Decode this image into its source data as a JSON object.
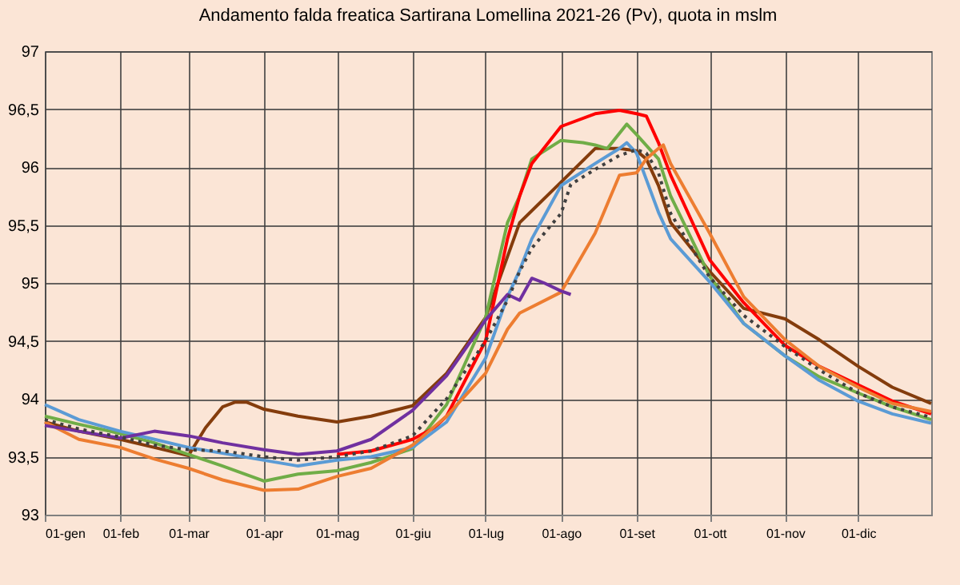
{
  "chart_data": {
    "type": "line",
    "title": "Andamento  falda freatica Sartirana Lomellina 2021-26 (Pv), quota in mslm",
    "xlim": [
      "--01-01",
      "--12-31"
    ],
    "xticks": [
      {
        "value": "--01-01",
        "label": "01-gen"
      },
      {
        "value": "--02-01",
        "label": "01-feb"
      },
      {
        "value": "--03-01",
        "label": "01-mar"
      },
      {
        "value": "--04-01",
        "label": "01-apr"
      },
      {
        "value": "--05-01",
        "label": "01-mag"
      },
      {
        "value": "--06-01",
        "label": "01-giu"
      },
      {
        "value": "--07-01",
        "label": "01-lug"
      },
      {
        "value": "--08-01",
        "label": "01-ago"
      },
      {
        "value": "--09-01",
        "label": "01-set"
      },
      {
        "value": "--10-01",
        "label": "01-ott"
      },
      {
        "value": "--11-01",
        "label": "01-nov"
      },
      {
        "value": "--12-01",
        "label": "01-dic"
      }
    ],
    "ylim": [
      93,
      97
    ],
    "yticks": [
      93,
      {
        "value": 93.5,
        "label": "93,5"
      },
      94,
      {
        "value": 94.5,
        "label": "94,5"
      },
      95,
      {
        "value": 95.5,
        "label": "95,5"
      },
      96,
      {
        "value": 96.5,
        "label": "96,5"
      },
      97
    ],
    "grid": true,
    "series": [
      {
        "color": "#843c0c",
        "x": [
          "--01-01",
          "--01-15",
          "--02-01",
          "--02-15",
          "--03-01",
          "--03-08",
          "--03-15",
          "--03-20",
          "--03-25",
          "--04-01",
          "--04-15",
          "--05-01",
          "--05-15",
          "--06-01",
          "--06-15",
          "--07-01",
          "--07-15",
          "--08-01",
          "--08-15",
          "--08-25",
          "--09-01",
          "--09-05",
          "--09-10",
          "--09-15",
          "--10-01",
          "--10-15",
          "--11-01",
          "--11-15",
          "--12-01",
          "--12-15",
          "--12-31"
        ],
        "values": [
          93.8,
          93.72,
          93.65,
          93.58,
          93.51,
          93.75,
          93.93,
          93.97,
          93.97,
          93.91,
          93.85,
          93.8,
          93.85,
          93.94,
          94.22,
          94.7,
          95.52,
          95.87,
          96.16,
          96.16,
          96.14,
          96.07,
          95.84,
          95.52,
          95.1,
          94.78,
          94.69,
          94.51,
          94.28,
          94.1,
          93.96
        ]
      },
      {
        "color": "#70ad47",
        "x": [
          "--01-01",
          "--01-15",
          "--02-01",
          "--02-15",
          "--03-01",
          "--03-15",
          "--04-01",
          "--04-15",
          "--05-01",
          "--05-15",
          "--06-01",
          "--06-15",
          "--07-01",
          "--07-10",
          "--07-15",
          "--07-20",
          "--08-01",
          "--08-10",
          "--08-15",
          "--08-20",
          "--08-28",
          "--09-01",
          "--09-10",
          "--09-15",
          "--10-01",
          "--10-15",
          "--11-01",
          "--11-15",
          "--12-01",
          "--12-15",
          "--12-31"
        ],
        "values": [
          93.85,
          93.78,
          93.7,
          93.62,
          93.52,
          93.42,
          93.29,
          93.35,
          93.38,
          93.45,
          93.57,
          93.95,
          94.7,
          95.52,
          95.75,
          96.07,
          96.23,
          96.21,
          96.19,
          96.16,
          96.37,
          96.28,
          96.07,
          95.75,
          95.06,
          94.65,
          94.37,
          94.19,
          94.05,
          93.93,
          93.82
        ]
      },
      {
        "color": "#ff0000",
        "x": [
          "--05-01",
          "--05-15",
          "--06-01",
          "--06-10",
          "--06-15",
          "--07-01",
          "--07-10",
          "--07-15",
          "--07-20",
          "--08-01",
          "--08-15",
          "--08-25",
          "--09-01",
          "--09-05",
          "--09-10",
          "--09-15",
          "--10-01",
          "--10-15",
          "--11-01",
          "--11-15",
          "--12-01",
          "--12-15",
          "--12-31"
        ],
        "values": [
          93.52,
          93.55,
          93.65,
          93.75,
          93.85,
          94.5,
          95.38,
          95.75,
          96.03,
          96.35,
          96.46,
          96.49,
          96.46,
          96.44,
          96.21,
          95.93,
          95.2,
          94.83,
          94.46,
          94.28,
          94.12,
          93.98,
          93.87
        ]
      },
      {
        "color": "#5b9bd5",
        "x": [
          "--01-01",
          "--01-15",
          "--02-01",
          "--02-15",
          "--03-01",
          "--03-15",
          "--04-01",
          "--04-15",
          "--05-01",
          "--05-15",
          "--06-01",
          "--06-15",
          "--07-01",
          "--07-10",
          "--07-15",
          "--07-20",
          "--08-01",
          "--08-15",
          "--08-25",
          "--08-28",
          "--09-01",
          "--09-10",
          "--09-15",
          "--10-01",
          "--10-15",
          "--11-01",
          "--11-15",
          "--12-01",
          "--12-15",
          "--12-31"
        ],
        "values": [
          93.95,
          93.82,
          93.72,
          93.65,
          93.58,
          93.53,
          93.47,
          93.42,
          93.47,
          93.5,
          93.58,
          93.8,
          94.35,
          94.88,
          95.11,
          95.38,
          95.84,
          96.03,
          96.16,
          96.21,
          96.12,
          95.61,
          95.38,
          95.01,
          94.65,
          94.37,
          94.16,
          93.98,
          93.87,
          93.79
        ]
      },
      {
        "color": "#ed7d31",
        "x": [
          "--01-01",
          "--01-15",
          "--02-01",
          "--02-15",
          "--03-01",
          "--03-15",
          "--04-01",
          "--04-15",
          "--05-01",
          "--05-15",
          "--06-01",
          "--06-15",
          "--07-01",
          "--07-10",
          "--07-15",
          "--08-01",
          "--08-15",
          "--08-25",
          "--09-01",
          "--09-05",
          "--09-10",
          "--09-12",
          "--09-15",
          "--10-01",
          "--10-15",
          "--11-01",
          "--11-15",
          "--12-01",
          "--12-15",
          "--12-31"
        ],
        "values": [
          93.8,
          93.65,
          93.58,
          93.48,
          93.4,
          93.3,
          93.21,
          93.22,
          93.33,
          93.4,
          93.6,
          93.85,
          94.22,
          94.6,
          94.74,
          94.92,
          95.43,
          95.93,
          95.95,
          96.07,
          96.16,
          96.19,
          96.03,
          95.43,
          94.88,
          94.51,
          94.28,
          94.1,
          93.96,
          93.89
        ]
      },
      {
        "color": "#7030a0",
        "x": [
          "--01-01",
          "--01-15",
          "--02-01",
          "--02-15",
          "--03-01",
          "--03-15",
          "--04-01",
          "--04-15",
          "--05-01",
          "--05-15",
          "--06-01",
          "--06-15",
          "--07-01",
          "--07-10",
          "--07-15",
          "--07-20",
          "--07-25",
          "--08-01",
          "--08-05"
        ],
        "values": [
          93.77,
          93.72,
          93.66,
          93.72,
          93.68,
          93.62,
          93.56,
          93.52,
          93.55,
          93.65,
          93.9,
          94.2,
          94.68,
          94.9,
          94.85,
          95.04,
          95.0,
          94.93,
          94.9
        ]
      },
      {
        "color": "#404040",
        "line_style": "dotted",
        "x": [
          "--01-01",
          "--01-15",
          "--02-01",
          "--02-15",
          "--03-01",
          "--03-15",
          "--04-01",
          "--04-15",
          "--05-01",
          "--05-15",
          "--06-01",
          "--06-15",
          "--07-01",
          "--07-10",
          "--07-15",
          "--07-20",
          "--08-01",
          "--08-05",
          "--08-15",
          "--08-25",
          "--09-01",
          "--09-05",
          "--09-10",
          "--09-15",
          "--10-01",
          "--10-15",
          "--11-01",
          "--11-15",
          "--12-01",
          "--12-15",
          "--12-31"
        ],
        "values": [
          93.82,
          93.74,
          93.67,
          93.6,
          93.56,
          93.55,
          93.5,
          93.47,
          93.5,
          93.55,
          93.68,
          94.0,
          94.5,
          94.85,
          95.1,
          95.3,
          95.6,
          95.85,
          95.98,
          96.1,
          96.15,
          96.12,
          95.95,
          95.6,
          95.05,
          94.72,
          94.45,
          94.25,
          94.05,
          93.93,
          93.84
        ]
      }
    ]
  }
}
